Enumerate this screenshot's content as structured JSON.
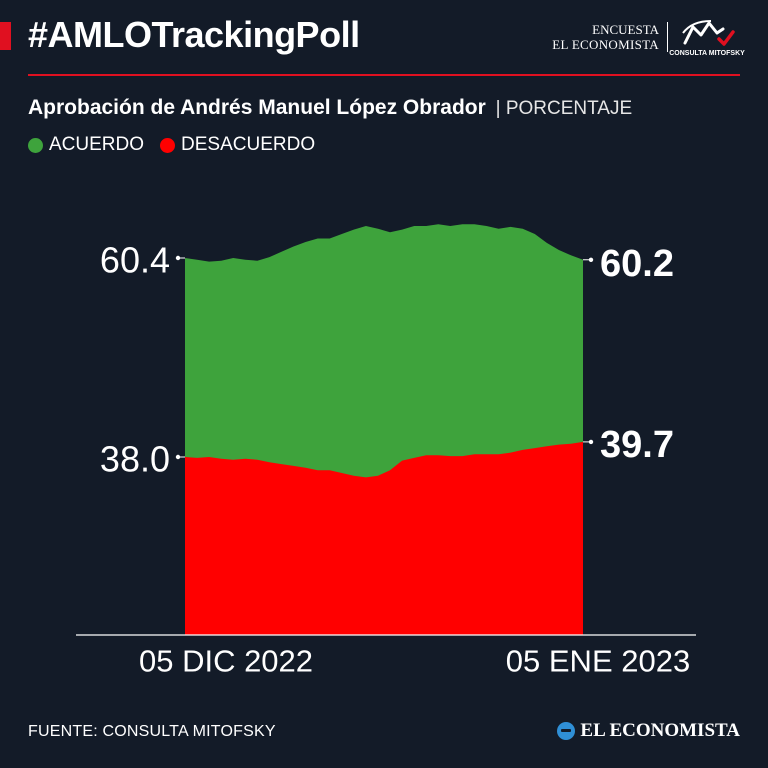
{
  "header": {
    "hashtag": "#AMLOTrackingPoll",
    "brand_line1": "ENCUESTA",
    "brand_line2": "EL ECONOMISTA",
    "mitofsky_label": "CONSULTA MITOFSKY"
  },
  "subtitle": {
    "main": "Aprobación de Andrés Manuel López Obrador",
    "unit": "| PORCENTAJE"
  },
  "legend": [
    {
      "label": "ACUERDO",
      "color": "#3ea33c"
    },
    {
      "label": "DESACUERDO",
      "color": "#ff0000"
    }
  ],
  "chart_data": {
    "type": "area",
    "x_start_label": "05 DIC 2022",
    "x_end_label": "05 ENE 2023",
    "series": [
      {
        "name": "ACUERDO",
        "color": "#3ea33c",
        "start_label": "60.4",
        "end_label": "60.2",
        "values": [
          60.4,
          60.2,
          60.0,
          60.1,
          60.4,
          60.2,
          60.1,
          60.5,
          61.1,
          61.7,
          62.2,
          62.6,
          62.6,
          63.1,
          63.6,
          64.0,
          63.7,
          63.3,
          63.6,
          64.0,
          64.0,
          64.2,
          64.0,
          64.2,
          64.2,
          64.0,
          63.7,
          63.9,
          63.7,
          63.1,
          62.1,
          61.3,
          60.7,
          60.2
        ]
      },
      {
        "name": "DESACUERDO",
        "color": "#ff0000",
        "start_label": "38.0",
        "end_label": "39.7",
        "values": [
          38.0,
          37.9,
          38.0,
          37.8,
          37.7,
          37.8,
          37.7,
          37.4,
          37.2,
          37.0,
          36.8,
          36.5,
          36.5,
          36.2,
          35.9,
          35.7,
          35.9,
          36.5,
          37.6,
          37.9,
          38.2,
          38.2,
          38.1,
          38.1,
          38.3,
          38.3,
          38.3,
          38.5,
          38.8,
          39.0,
          39.2,
          39.4,
          39.5,
          39.7
        ]
      }
    ]
  },
  "footer": {
    "source": "FUENTE: CONSULTA MITOFSKY",
    "brand": "EL ECONOMISTA"
  }
}
